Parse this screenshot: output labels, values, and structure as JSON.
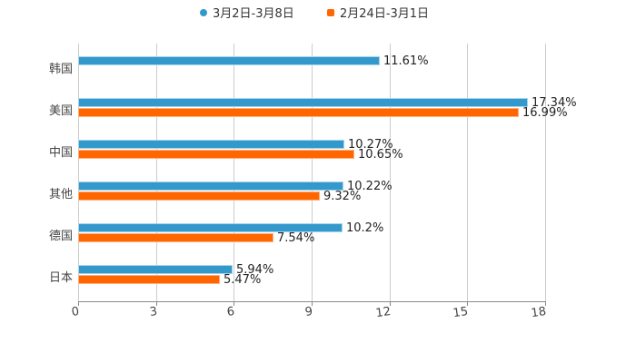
{
  "chart_data": {
    "type": "bar",
    "orientation": "horizontal",
    "title": "",
    "xlabel": "",
    "ylabel": "",
    "xlim": [
      0,
      18
    ],
    "x_ticks": [
      "0",
      "3",
      "6",
      "9",
      "12",
      "15",
      "18"
    ],
    "grid": true,
    "legend_position": "top",
    "categories": [
      "韩国",
      "美国",
      "中国",
      "其他",
      "德国",
      "日本"
    ],
    "series": [
      {
        "name": "3月2日-3月8日",
        "color": "#3399cc",
        "values": [
          11.61,
          17.34,
          10.27,
          10.22,
          10.2,
          5.94
        ],
        "labels": [
          "11.61%",
          "17.34%",
          "10.27%",
          "10.22%",
          "10.2%",
          "5.94%"
        ]
      },
      {
        "name": "2月24日-3月1日",
        "color": "#ff6600",
        "values": [
          null,
          16.99,
          10.65,
          9.32,
          7.54,
          5.47
        ],
        "labels": [
          "",
          "16.99%",
          "10.65%",
          "9.32%",
          "7.54%",
          "5.47%"
        ]
      }
    ]
  },
  "legend": {
    "series_a": "3月2日-3月8日",
    "series_b": "2月24日-3月1日"
  }
}
